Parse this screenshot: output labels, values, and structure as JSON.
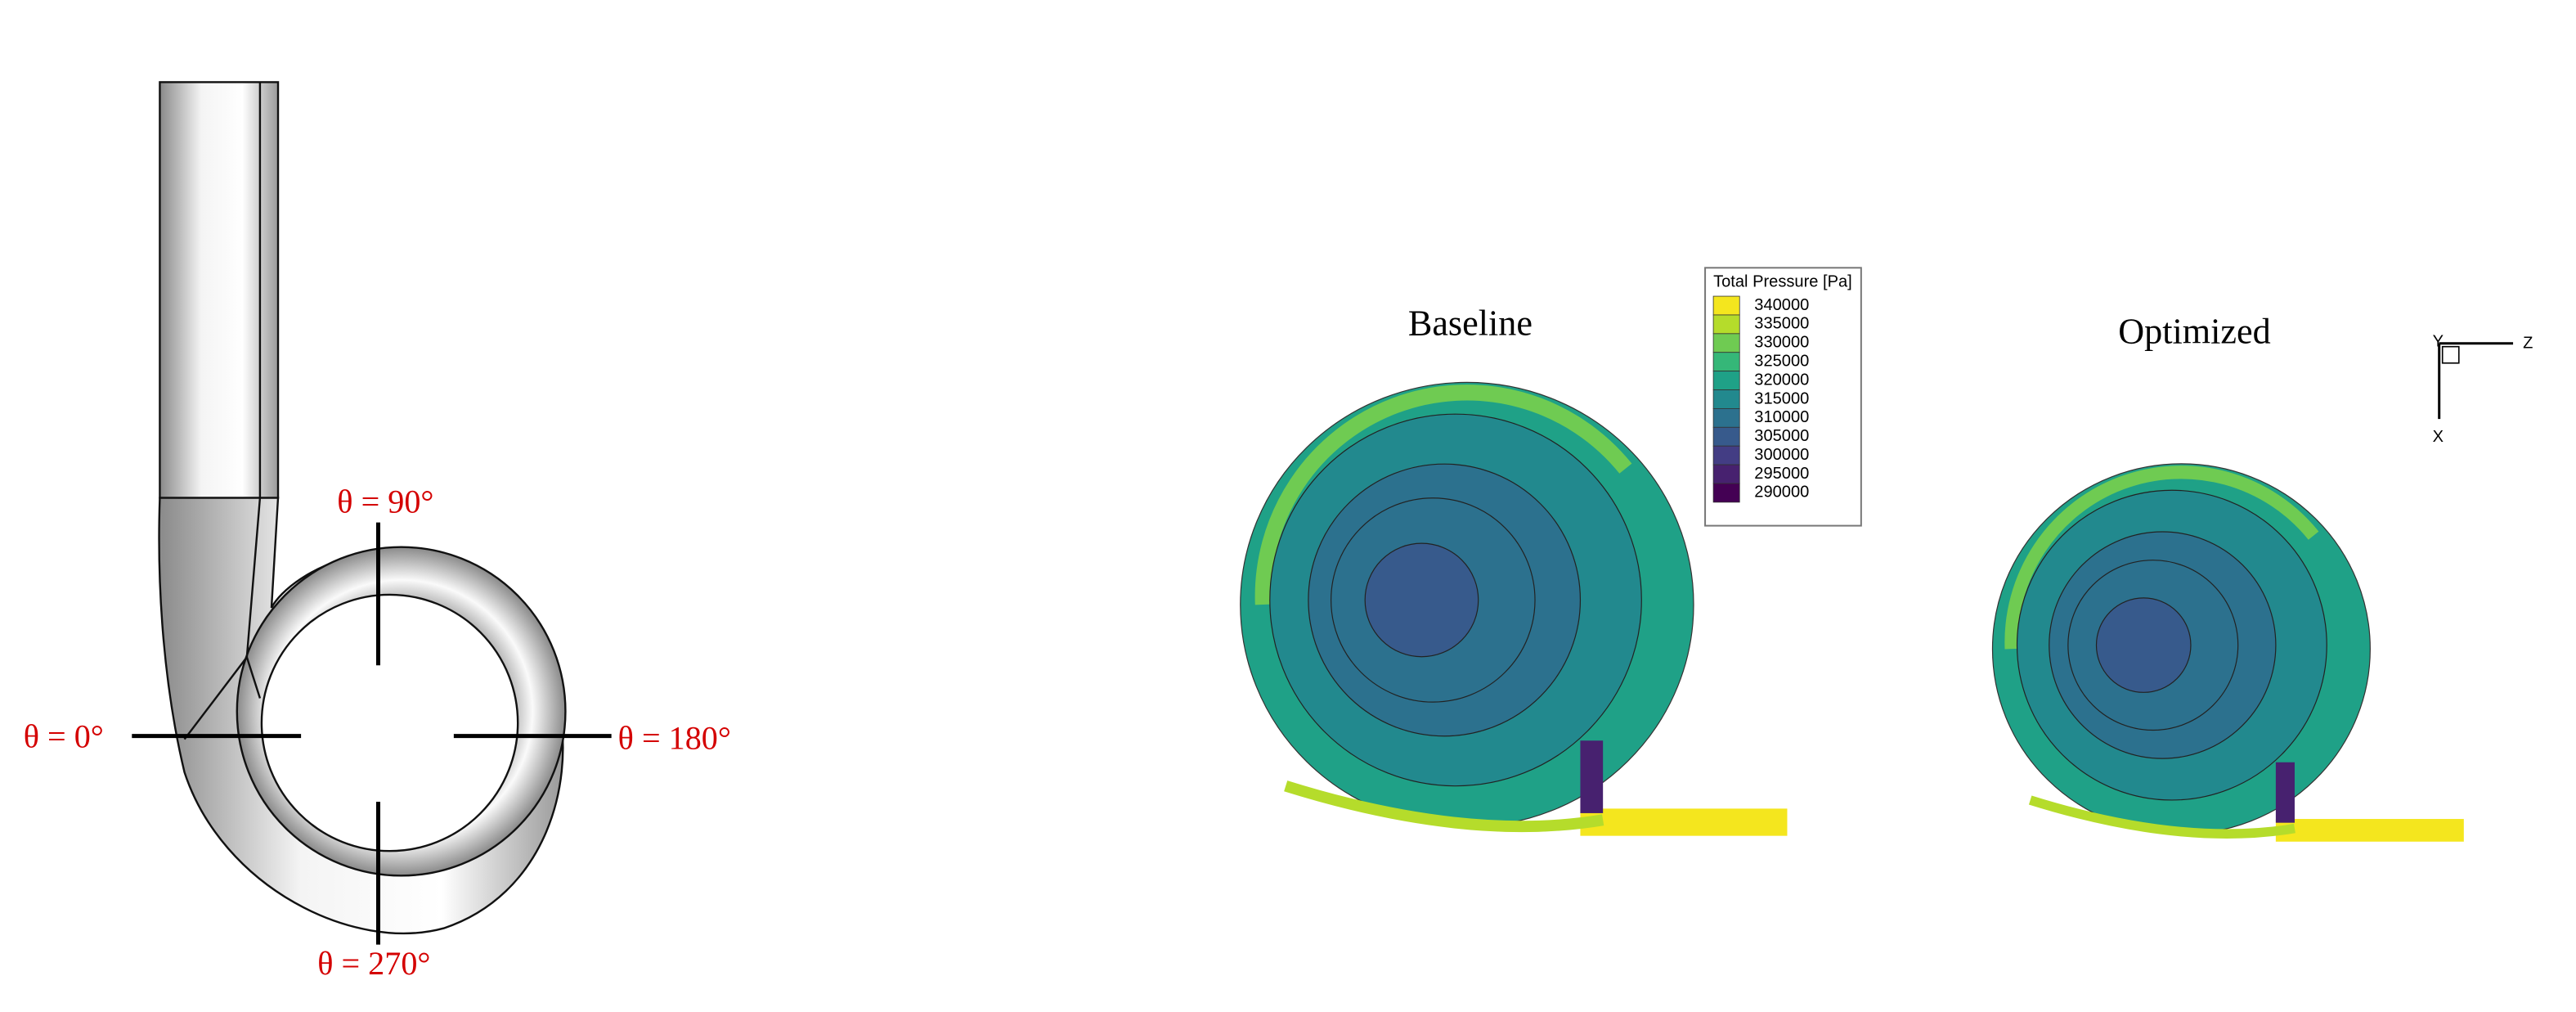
{
  "left": {
    "labels": [
      "θ = 90°",
      "θ  = 0°",
      "θ = 180°",
      "θ = 270°"
    ]
  },
  "right": {
    "baseline": "Baseline",
    "optimized": "Optimized",
    "legend": {
      "title": "Total Pressure [Pa]",
      "levels": [
        "340000",
        "335000",
        "330000",
        "325000",
        "320000",
        "315000",
        "310000",
        "305000",
        "300000",
        "295000",
        "290000"
      ]
    },
    "axes": {
      "y": "Y",
      "z": "Z",
      "x": "X"
    }
  }
}
